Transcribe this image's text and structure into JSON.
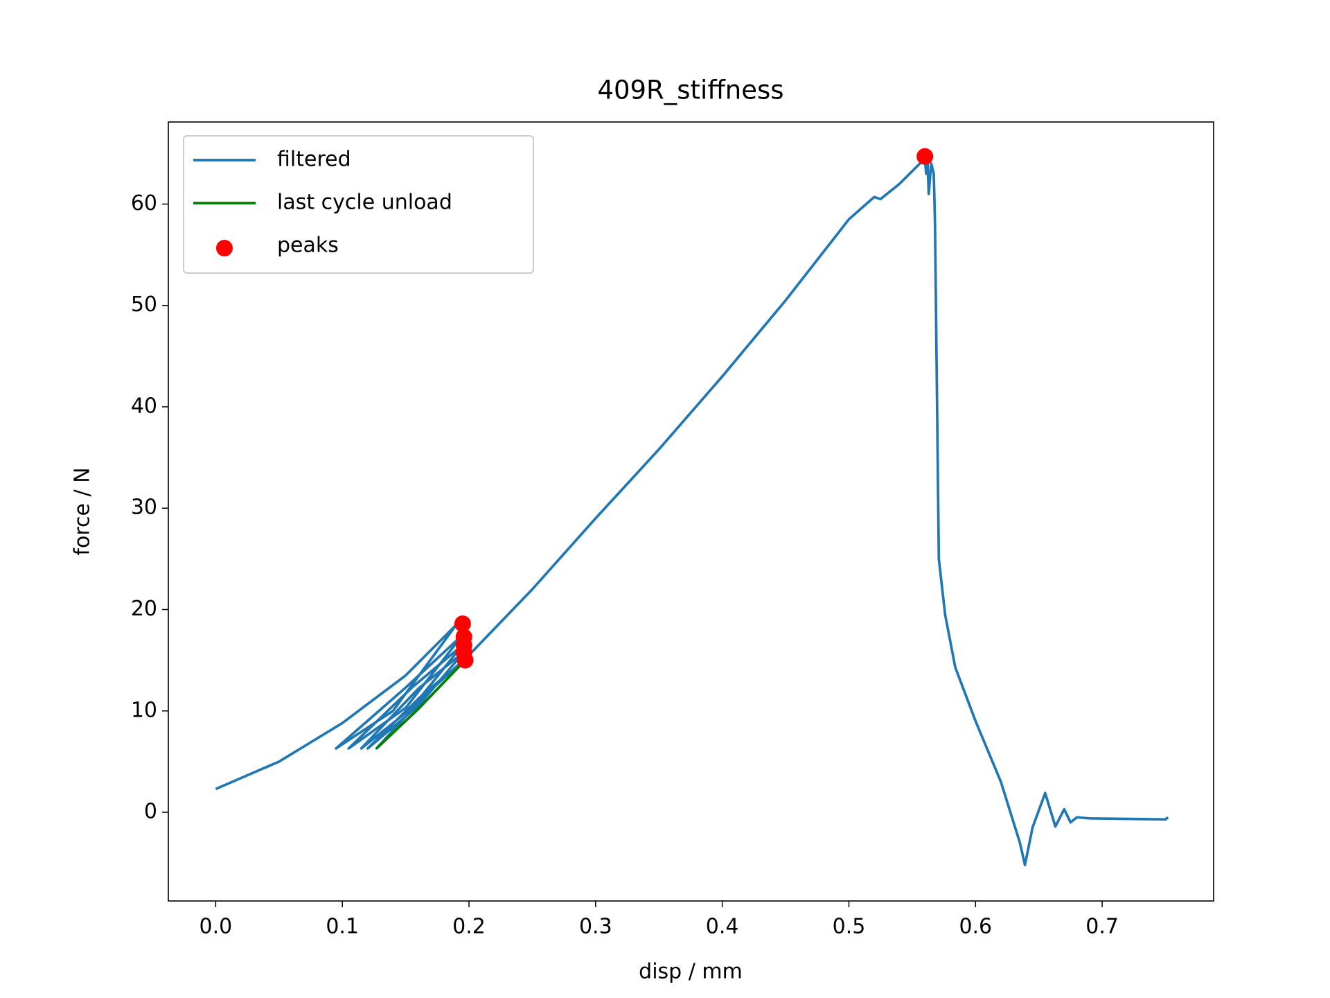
{
  "chart_data": {
    "type": "line",
    "title": "409R_stiffness",
    "x_label": "disp / mm",
    "y_label": "force / N",
    "xlim": [
      -0.0374,
      0.788
    ],
    "ylim": [
      -8.75,
      68.1
    ],
    "xticks": [
      {
        "value": 0,
        "label": "0.0"
      },
      0.1,
      0.2,
      0.3,
      0.4,
      0.5,
      0.6,
      0.7
    ],
    "yticks": [
      0,
      10,
      20,
      30,
      40,
      50,
      60
    ],
    "legend": "upper left",
    "series": [
      {
        "name": "filtered",
        "type": "line",
        "color": "#1f77b4",
        "x": [
          0,
          0.05,
          0.1,
          0.15,
          0.19,
          0.14,
          0.095,
          0.15,
          0.195,
          0.15,
          0.105,
          0.155,
          0.195,
          0.155,
          0.115,
          0.16,
          0.196,
          0.16,
          0.12,
          0.165,
          0.197,
          0.16,
          0.127,
          0.165,
          0.2,
          0.25,
          0.3,
          0.35,
          0.4,
          0.45,
          0.5,
          0.52,
          0.525,
          0.54,
          0.56,
          0.561,
          0.562,
          0.563,
          0.565,
          0.567,
          0.568,
          0.571,
          0.576,
          0.584,
          0.6,
          0.62,
          0.635,
          0.639,
          0.645,
          0.655,
          0.663,
          0.67,
          0.675,
          0.68,
          0.69,
          0.75,
          0.752
        ],
        "y": [
          2.3,
          5,
          8.8,
          13.5,
          18.5,
          10,
          6.3,
          12.3,
          17.5,
          10.3,
          6.3,
          12.3,
          16.5,
          10.3,
          6.3,
          12.2,
          15.8,
          10.5,
          6.3,
          11.8,
          15,
          10.2,
          6.3,
          11.5,
          15.5,
          22,
          29,
          35.8,
          43,
          50.5,
          58.5,
          60.7,
          60.5,
          62,
          64.5,
          63,
          64.5,
          61,
          64,
          63,
          58,
          25,
          19.5,
          14.3,
          9,
          3,
          -3,
          -5.2,
          -1.5,
          1.9,
          -1.4,
          0.3,
          -1,
          -0.5,
          -0.6,
          -0.7,
          -0.5
        ]
      },
      {
        "name": "last cycle unload",
        "type": "line",
        "color": "#008000",
        "x": [
          0.127,
          0.16,
          0.197
        ],
        "y": [
          6.3,
          10.2,
          15
        ]
      },
      {
        "name": "peaks",
        "type": "scatter",
        "color": "#ff0000",
        "x": [
          0.195,
          0.196,
          0.196,
          0.196,
          0.197,
          0.56
        ],
        "y": [
          18.6,
          17.3,
          16.5,
          15.8,
          15,
          64.7
        ]
      }
    ]
  }
}
